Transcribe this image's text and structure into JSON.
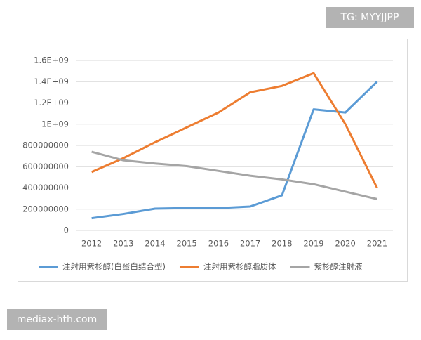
{
  "chart_data": {
    "type": "line",
    "categories": [
      "2012",
      "2013",
      "2014",
      "2015",
      "2016",
      "2017",
      "2018",
      "2019",
      "2020",
      "2021"
    ],
    "series": [
      {
        "name": "注射用紫杉醇(白蛋白结合型)",
        "color": "#5b9bd5",
        "values": [
          115000000,
          155000000,
          205000000,
          210000000,
          210000000,
          225000000,
          330000000,
          1140000000,
          1110000000,
          1400000000
        ]
      },
      {
        "name": "注射用紫杉醇脂质体",
        "color": "#ed7d31",
        "values": [
          550000000,
          680000000,
          830000000,
          970000000,
          1110000000,
          1300000000,
          1360000000,
          1480000000,
          1000000000,
          400000000
        ]
      },
      {
        "name": "紫杉醇注射液",
        "color": "#a5a5a5",
        "values": [
          740000000,
          660000000,
          630000000,
          605000000,
          560000000,
          515000000,
          480000000,
          435000000,
          365000000,
          295000000
        ]
      }
    ],
    "ylim": [
      0,
      1600000000
    ],
    "yticks": [
      0,
      200000000,
      400000000,
      600000000,
      800000000,
      {
        "value": 1000000000,
        "label": "1E+09"
      },
      {
        "value": 1200000000,
        "label": "1.2E+09"
      },
      {
        "value": 1400000000,
        "label": "1.4E+09"
      },
      {
        "value": 1600000000,
        "label": "1.6E+09"
      }
    ],
    "grid": true,
    "legend": "bottom"
  },
  "watermarks": [
    "TG: MYYJJPP",
    "mediax-hth.com"
  ]
}
